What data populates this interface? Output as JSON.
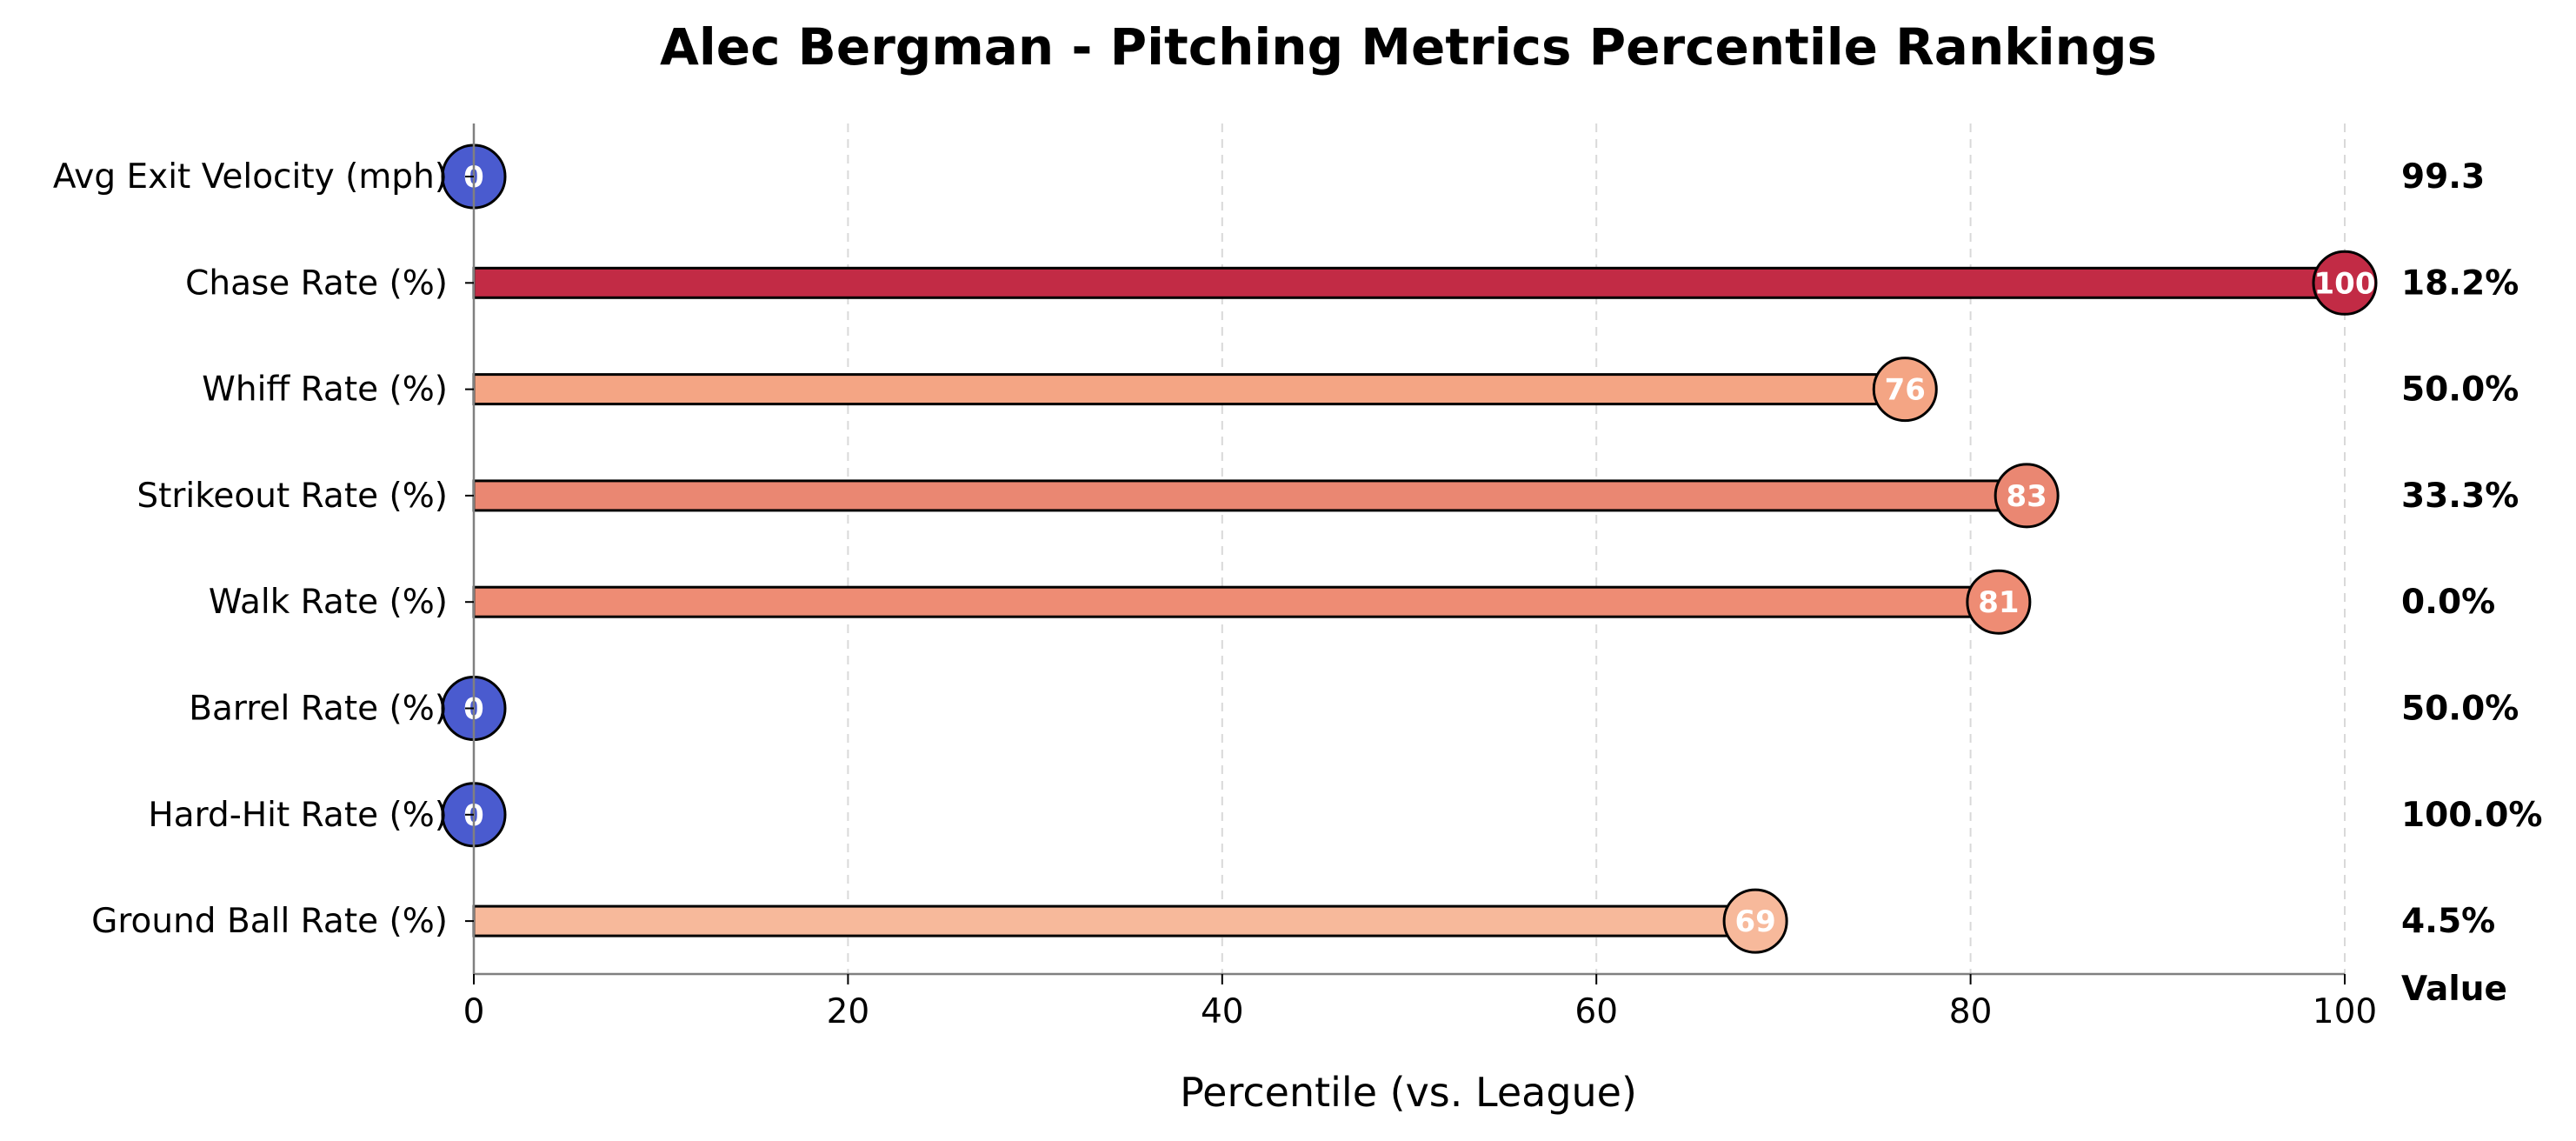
{
  "chart_data": {
    "type": "bar",
    "orientation": "horizontal",
    "title": "Alec Bergman - Pitching Metrics Percentile Rankings",
    "xlabel": "Percentile (vs. League)",
    "xlim": [
      0,
      100
    ],
    "xticks": [
      0,
      20,
      40,
      60,
      80,
      100
    ],
    "grid": "vertical dashed",
    "value_column_header": "Value",
    "categories": [
      "Avg Exit Velocity (mph)",
      "Chase Rate (%)",
      "Whiff Rate (%)",
      "Strikeout Rate (%)",
      "Walk Rate (%)",
      "Barrel Rate (%)",
      "Hard-Hit Rate (%)",
      "Ground Ball Rate (%)"
    ],
    "percentiles": [
      0,
      100,
      76.5,
      83,
      81.5,
      0,
      0,
      68.5
    ],
    "percentile_labels": [
      "0",
      "100",
      "76",
      "83",
      "81",
      "0",
      "0",
      "69"
    ],
    "raw_values": [
      "99.3",
      "18.2%",
      "50.0%",
      "33.3%",
      "0.0%",
      "50.0%",
      "100.0%",
      "4.5%"
    ],
    "colors": [
      "#4a5bcf",
      "#c22b45",
      "#f4a584",
      "#ea8772",
      "#ee8c74",
      "#4a5bcf",
      "#4a5bcf",
      "#f7b99b"
    ]
  }
}
